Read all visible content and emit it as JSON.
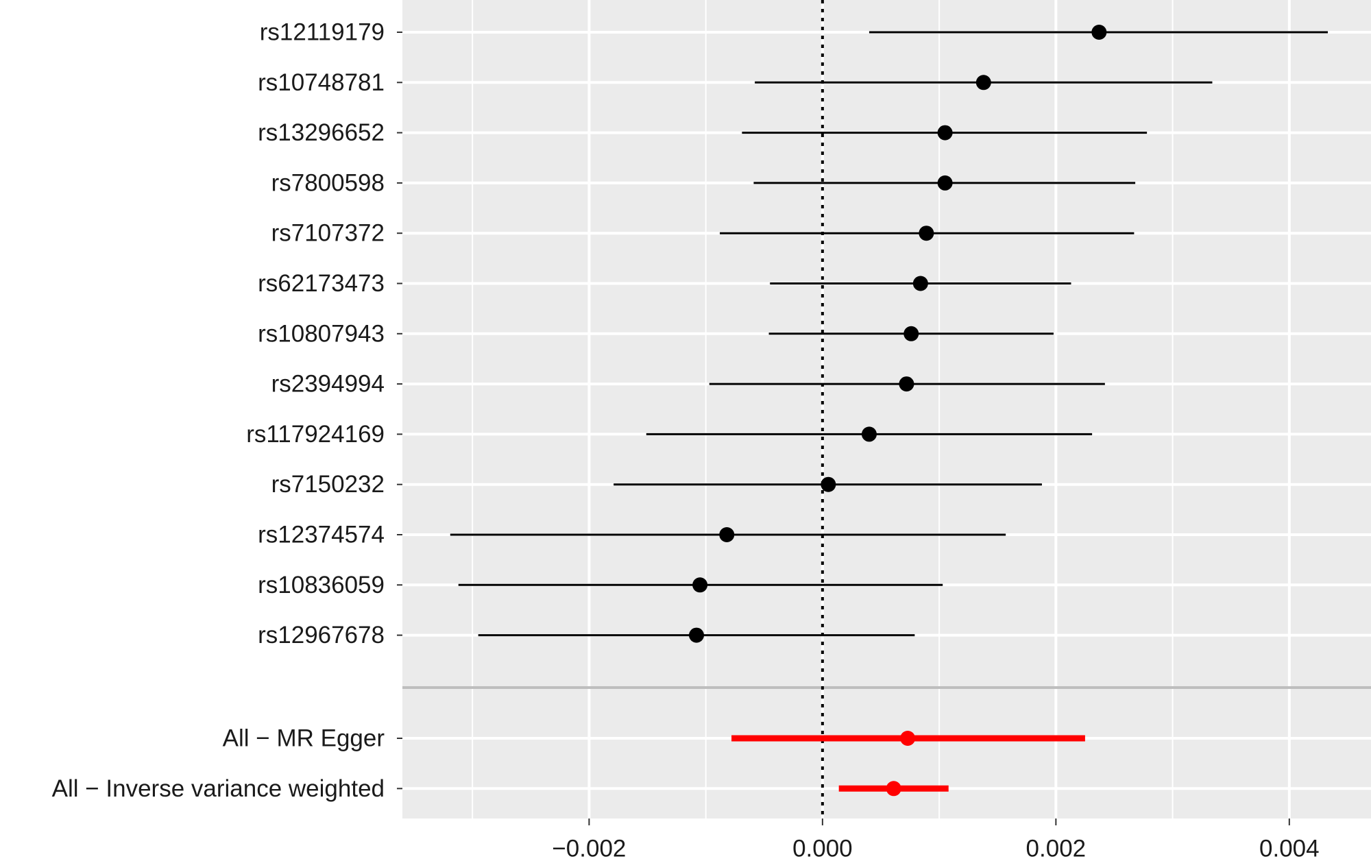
{
  "chart_data": {
    "type": "forest",
    "title": "",
    "xlabel": "",
    "ylabel": "",
    "xlim": [
      -0.0036,
      0.0047
    ],
    "x_ticks": [
      -0.002,
      0.0,
      0.002,
      0.004
    ],
    "x_tick_labels": [
      "−0.002",
      "0.000",
      "0.002",
      "0.004"
    ],
    "reference_line": 0.0,
    "grid": true,
    "colors": {
      "panel": "#ebebeb",
      "grid": "#ffffff",
      "snp": "#000000",
      "summary": "#ff0000",
      "separator": "#bebebe"
    },
    "snps": [
      {
        "label": "rs12119179",
        "estimate": 0.00237,
        "lower": 0.0004,
        "upper": 0.00433
      },
      {
        "label": "rs10748781",
        "estimate": 0.00138,
        "lower": -0.00058,
        "upper": 0.00334
      },
      {
        "label": "rs13296652",
        "estimate": 0.00105,
        "lower": -0.00069,
        "upper": 0.00278
      },
      {
        "label": "rs7800598",
        "estimate": 0.00105,
        "lower": -0.00059,
        "upper": 0.00268
      },
      {
        "label": "rs7107372",
        "estimate": 0.00089,
        "lower": -0.00088,
        "upper": 0.00267
      },
      {
        "label": "rs62173473",
        "estimate": 0.00084,
        "lower": -0.00045,
        "upper": 0.00213
      },
      {
        "label": "rs10807943",
        "estimate": 0.00076,
        "lower": -0.00046,
        "upper": 0.00198
      },
      {
        "label": "rs2394994",
        "estimate": 0.00072,
        "lower": -0.00097,
        "upper": 0.00242
      },
      {
        "label": "rs117924169",
        "estimate": 0.0004,
        "lower": -0.00151,
        "upper": 0.00231
      },
      {
        "label": "rs7150232",
        "estimate": 5e-05,
        "lower": -0.00179,
        "upper": 0.00188
      },
      {
        "label": "rs12374574",
        "estimate": -0.00082,
        "lower": -0.00319,
        "upper": 0.00157
      },
      {
        "label": "rs10836059",
        "estimate": -0.00105,
        "lower": -0.00312,
        "upper": 0.00103
      },
      {
        "label": "rs12967678",
        "estimate": -0.00108,
        "lower": -0.00295,
        "upper": 0.00079
      }
    ],
    "summaries": [
      {
        "label": "All − MR Egger",
        "estimate": 0.00073,
        "lower": -0.00078,
        "upper": 0.00225
      },
      {
        "label": "All − Inverse variance weighted",
        "estimate": 0.00061,
        "lower": 0.00014,
        "upper": 0.00108
      }
    ]
  }
}
